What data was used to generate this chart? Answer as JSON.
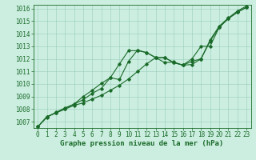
{
  "xlabel": "Graphe pression niveau de la mer (hPa)",
  "xlim": [
    -0.5,
    23.5
  ],
  "ylim": [
    1006.5,
    1016.3
  ],
  "yticks": [
    1007,
    1008,
    1009,
    1010,
    1011,
    1012,
    1013,
    1014,
    1015,
    1016
  ],
  "xticks": [
    0,
    1,
    2,
    3,
    4,
    5,
    6,
    7,
    8,
    9,
    10,
    11,
    12,
    13,
    14,
    15,
    16,
    17,
    18,
    19,
    20,
    21,
    22,
    23
  ],
  "bg_color": "#cceee0",
  "plot_bg": "#cceee0",
  "grid_color": "#99ccbb",
  "line_color": "#1a6b2a",
  "series1": [
    1006.6,
    1007.4,
    1007.7,
    1008.0,
    1008.3,
    1008.5,
    1008.8,
    1009.1,
    1009.5,
    1009.9,
    1010.4,
    1011.0,
    1011.6,
    1012.1,
    1012.1,
    1011.7,
    1011.5,
    1011.8,
    1012.0,
    1013.4,
    1014.5,
    1015.2,
    1015.7,
    1016.1
  ],
  "series2": [
    1006.6,
    1007.35,
    1007.75,
    1008.1,
    1008.4,
    1008.75,
    1009.25,
    1009.65,
    1010.5,
    1011.6,
    1012.65,
    1012.65,
    1012.5,
    1012.1,
    1011.7,
    1011.75,
    1011.5,
    1011.55,
    1012.0,
    1013.5,
    1014.6,
    1015.25,
    1015.8,
    1016.2
  ],
  "series3": [
    1006.6,
    1007.4,
    1007.7,
    1008.05,
    1008.4,
    1009.0,
    1009.5,
    1010.05,
    1010.5,
    1010.35,
    1011.8,
    1012.7,
    1012.5,
    1012.1,
    1012.1,
    1011.7,
    1011.5,
    1012.0,
    1013.0,
    1013.0,
    1014.5,
    1015.2,
    1015.7,
    1016.1
  ],
  "marker": "D",
  "marker_size": 1.8,
  "linewidth": 0.8,
  "label_fontsize": 6.5,
  "tick_fontsize": 5.5
}
